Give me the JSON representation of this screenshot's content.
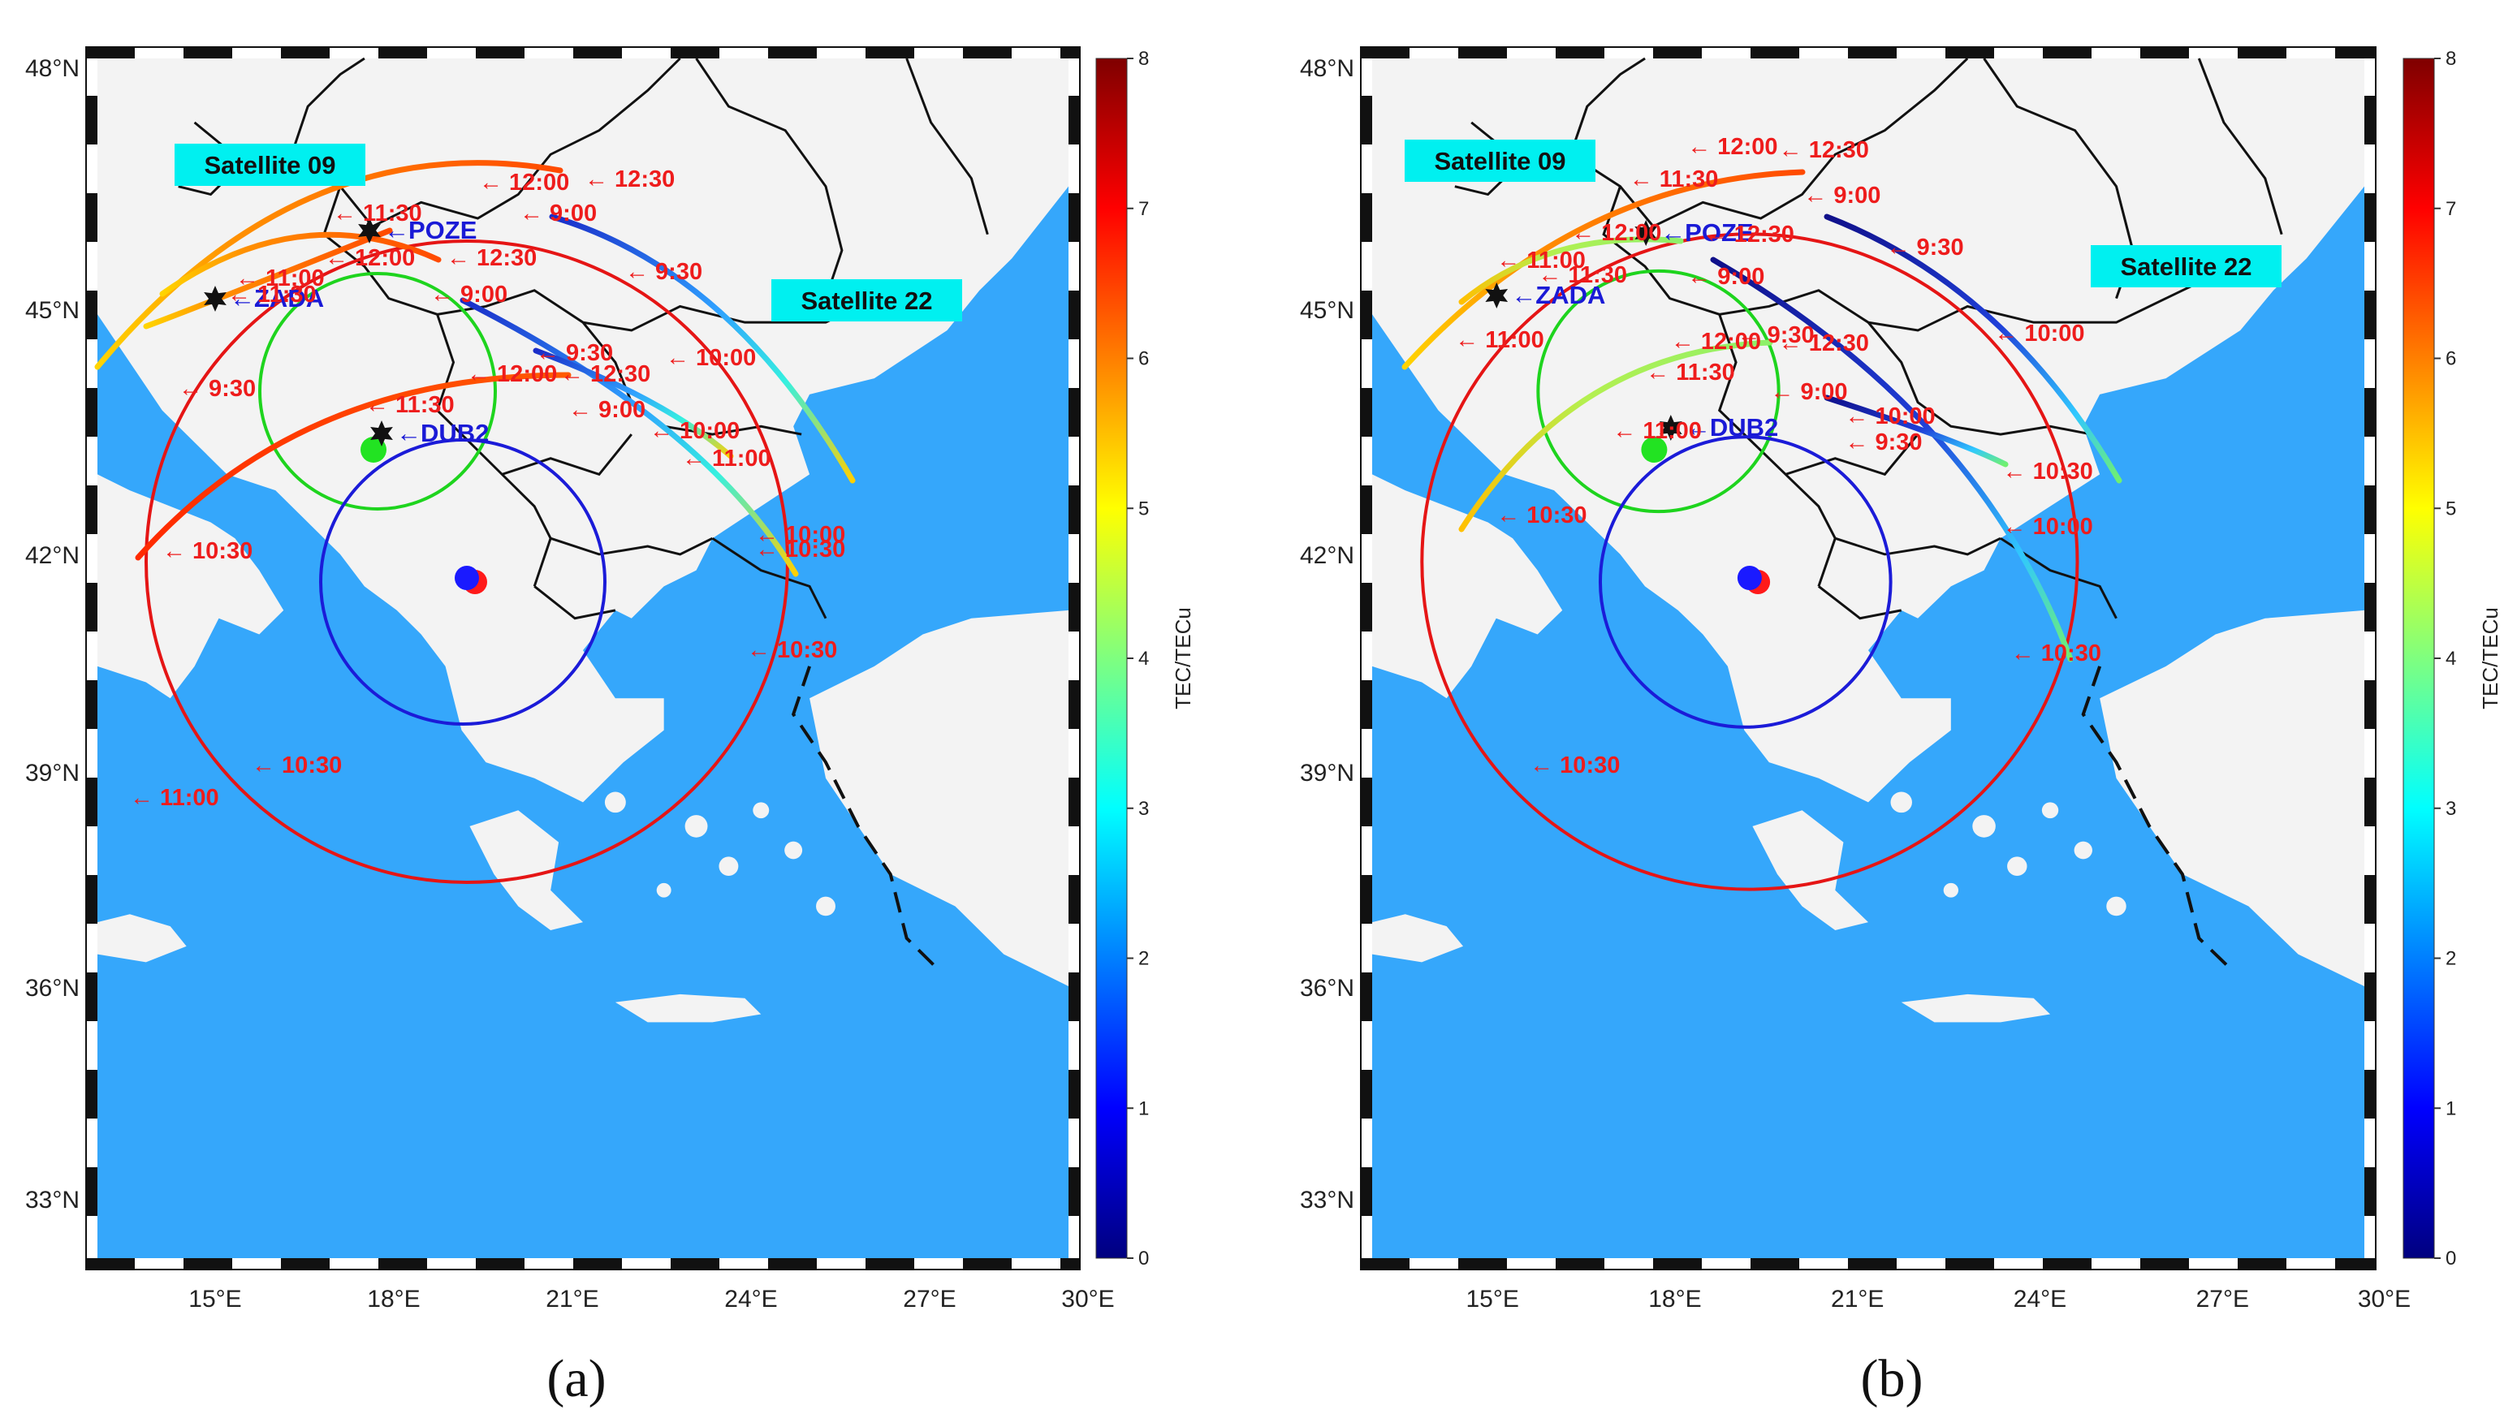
{
  "colors": {
    "sea": "#35a7fb",
    "land": "#f3f3f3",
    "border": "#111111",
    "time_label": "#ee1c1c",
    "station_label": "#1a1ad6",
    "satellite_box": "#00f0f0",
    "circle_red": "#e51515",
    "circle_green": "#1ed41e",
    "circle_blue": "#1b1bd8"
  },
  "colorbar": {
    "title": "TEC/TECu",
    "ticks": [
      "0",
      "1",
      "2",
      "3",
      "4",
      "5",
      "6",
      "7",
      "8"
    ],
    "colormap": "jet"
  },
  "axes": {
    "lon_ticks": [
      "15°E",
      "18°E",
      "21°E",
      "24°E",
      "27°E",
      "30°E"
    ],
    "lat_ticks": [
      "33°N",
      "36°N",
      "39°N",
      "42°N",
      "45°N",
      "48°N"
    ]
  },
  "stations": [
    {
      "name": "POZE",
      "icon": "star-icon"
    },
    {
      "name": "ZADA",
      "icon": "star-icon"
    },
    {
      "name": "DUB2",
      "icon": "star-icon"
    }
  ],
  "panels": [
    {
      "caption": "(a)",
      "satellites": [
        "Satellite 09",
        "Satellite 22"
      ],
      "time_labels": [
        "12:00",
        "12:30",
        "11:30",
        "9:00",
        "12:00",
        "12:30",
        "9:30",
        "11:00",
        "11:30",
        "9:00",
        "10:00",
        "10:30",
        "9:30",
        "12:00",
        "12:30",
        "11:00",
        "11:30",
        "9:00",
        "10:00",
        "9:30",
        "11:00",
        "10:00",
        "10:30",
        "10:30",
        "10:30"
      ]
    },
    {
      "caption": "(b)",
      "satellites": [
        "Satellite 09",
        "Satellite 22"
      ],
      "time_labels": [
        "12:00",
        "12:30",
        "11:30",
        "9:00",
        "12:00",
        "12:30",
        "9:30",
        "11:00",
        "11:30",
        "9:00",
        "10:00",
        "10:30",
        "11:00",
        "9:30",
        "12:00",
        "12:30",
        "11:30",
        "9:00",
        "10:00",
        "11:00",
        "9:30",
        "10:30",
        "10:00",
        "10:30",
        "10:30"
      ]
    }
  ]
}
